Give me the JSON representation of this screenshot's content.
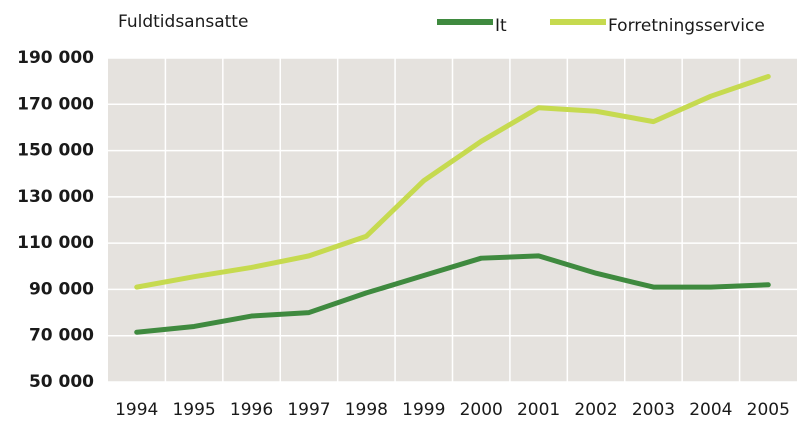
{
  "chart_data": {
    "type": "line",
    "y_axis_label": "Fuldtidsansatte",
    "categories": [
      "1994",
      "1995",
      "1996",
      "1997",
      "1998",
      "1999",
      "2000",
      "2001",
      "2002",
      "2003",
      "2004",
      "2005"
    ],
    "series": [
      {
        "name": "It",
        "color": "#3f8a3f",
        "values": [
          71500,
          74000,
          78500,
          80000,
          88500,
          96000,
          103500,
          104500,
          97000,
          91000,
          91000,
          92000
        ]
      },
      {
        "name": "Forretningsservice",
        "color": "#c6da4f",
        "values": [
          91000,
          95500,
          99500,
          104500,
          113000,
          137000,
          154000,
          168500,
          167000,
          162500,
          173500,
          182000
        ]
      }
    ],
    "ylim": [
      50000,
      190000
    ],
    "yticks": [
      {
        "value": 50000,
        "label": "50 000"
      },
      {
        "value": 70000,
        "label": "70 000"
      },
      {
        "value": 90000,
        "label": "90 000"
      },
      {
        "value": 110000,
        "label": "110 000"
      },
      {
        "value": 130000,
        "label": "130 000"
      },
      {
        "value": 150000,
        "label": "150 000"
      },
      {
        "value": 170000,
        "label": "170 000"
      },
      {
        "value": 190000,
        "label": "190 000"
      }
    ],
    "grid": true
  }
}
